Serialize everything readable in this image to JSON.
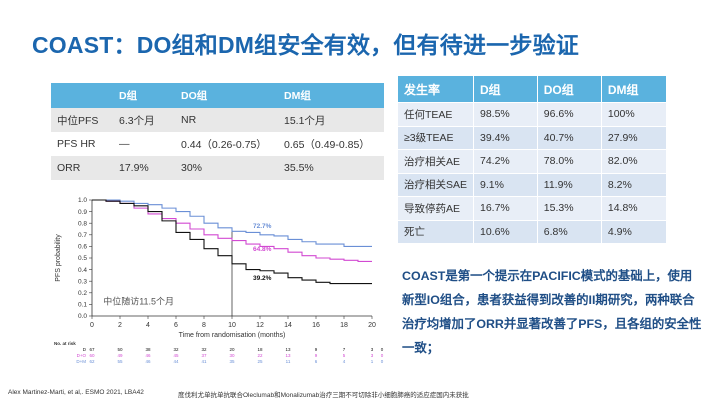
{
  "title": "COAST：DO组和DM组安全有效，但有待进一步验证",
  "efficacy_table": {
    "headers": [
      "",
      "D组",
      "DO组",
      "DM组"
    ],
    "rows": [
      [
        "中位PFS",
        "6.3个月",
        "NR",
        "15.1个月"
      ],
      [
        "PFS HR",
        "—",
        "0.44（0.26-0.75）",
        "0.65（0.49-0.85）"
      ],
      [
        "ORR",
        "17.9%",
        "30%",
        "35.5%"
      ]
    ]
  },
  "safety_table": {
    "headers": [
      "发生率",
      "D组",
      "DO组",
      "DM组"
    ],
    "rows": [
      [
        "任何TEAE",
        "98.5%",
        "96.6%",
        "100%"
      ],
      [
        "≥3级TEAE",
        "39.4%",
        "40.7%",
        "27.9%"
      ],
      [
        "治疗相关AE",
        "74.2%",
        "78.0%",
        "82.0%"
      ],
      [
        "治疗相关SAE",
        "9.1%",
        "11.9%",
        "8.2%"
      ],
      [
        "导致停药AE",
        "16.7%",
        "15.3%",
        "14.8%"
      ],
      [
        "死亡",
        "10.6%",
        "6.8%",
        "4.9%"
      ]
    ]
  },
  "summary": "COAST是第一个提示在PACIFIC模式的基础上，使用新型IO组合，患者获益得到改善的II期研究，两种联合治疗均增加了ORR并显著改善了PFS，且各组的安全性一致；",
  "chart_data": {
    "type": "line",
    "xlabel": "Time from randomisation (months)",
    "ylabel": "PFS probability",
    "xlim": [
      0,
      20
    ],
    "ylim": [
      0,
      1.0
    ],
    "xticks": [
      0,
      2,
      4,
      6,
      8,
      10,
      12,
      14,
      16,
      18,
      20
    ],
    "yticks": [
      "0.0",
      "0.1",
      "0.2",
      "0.3",
      "0.4",
      "0.5",
      "0.6",
      "0.7",
      "0.8",
      "0.9",
      "1.0"
    ],
    "annotation": "中位随访11.5个月",
    "colors": {
      "D": "#111111",
      "DO": "#6a8fd6",
      "DM": "#d24ad2"
    },
    "series": [
      {
        "name": "D",
        "label": "39.2%",
        "points": [
          [
            0,
            1.0
          ],
          [
            1,
            0.99
          ],
          [
            2,
            0.97
          ],
          [
            3,
            0.95
          ],
          [
            4,
            0.9
          ],
          [
            5,
            0.82
          ],
          [
            6,
            0.72
          ],
          [
            7,
            0.66
          ],
          [
            8,
            0.58
          ],
          [
            9,
            0.52
          ],
          [
            10,
            0.45
          ],
          [
            11,
            0.4
          ],
          [
            12,
            0.39
          ],
          [
            13,
            0.37
          ],
          [
            14,
            0.33
          ],
          [
            15,
            0.31
          ],
          [
            16,
            0.29
          ],
          [
            17,
            0.28
          ],
          [
            18,
            0.28
          ],
          [
            19,
            0.28
          ],
          [
            20,
            0.28
          ]
        ]
      },
      {
        "name": "DO",
        "label": "72.7%",
        "points": [
          [
            0,
            1.0
          ],
          [
            1,
            1.0
          ],
          [
            2,
            0.99
          ],
          [
            3,
            0.97
          ],
          [
            4,
            0.96
          ],
          [
            5,
            0.93
          ],
          [
            6,
            0.9
          ],
          [
            7,
            0.86
          ],
          [
            8,
            0.8
          ],
          [
            9,
            0.76
          ],
          [
            10,
            0.73
          ],
          [
            11,
            0.72
          ],
          [
            12,
            0.7
          ],
          [
            13,
            0.69
          ],
          [
            14,
            0.66
          ],
          [
            15,
            0.64
          ],
          [
            16,
            0.62
          ],
          [
            17,
            0.62
          ],
          [
            18,
            0.6
          ],
          [
            19,
            0.6
          ],
          [
            20,
            0.6
          ]
        ]
      },
      {
        "name": "DM",
        "label": "64.8%",
        "points": [
          [
            0,
            1.0
          ],
          [
            1,
            0.99
          ],
          [
            2,
            0.97
          ],
          [
            3,
            0.93
          ],
          [
            4,
            0.88
          ],
          [
            5,
            0.84
          ],
          [
            6,
            0.8
          ],
          [
            7,
            0.75
          ],
          [
            8,
            0.7
          ],
          [
            9,
            0.67
          ],
          [
            10,
            0.65
          ],
          [
            11,
            0.62
          ],
          [
            12,
            0.6
          ],
          [
            13,
            0.58
          ],
          [
            14,
            0.55
          ],
          [
            15,
            0.52
          ],
          [
            16,
            0.5
          ],
          [
            17,
            0.49
          ],
          [
            18,
            0.48
          ],
          [
            19,
            0.47
          ],
          [
            20,
            0.47
          ]
        ]
      }
    ],
    "risk_title": "No. at risk",
    "risk_table": [
      {
        "name": "D",
        "values": [
          "67",
          "50",
          "38",
          "32",
          "32",
          "20",
          "18",
          "13",
          "9",
          "7",
          "3",
          "0"
        ]
      },
      {
        "name": "D+O",
        "values": [
          "60",
          "49",
          "46",
          "45",
          "37",
          "30",
          "22",
          "13",
          "9",
          "5",
          "3",
          "0"
        ]
      },
      {
        "name": "D+M",
        "values": [
          "62",
          "55",
          "46",
          "44",
          "41",
          "35",
          "25",
          "11",
          "6",
          "4",
          "1",
          "0"
        ]
      }
    ]
  },
  "footer": {
    "citation": "Alex Martinez-Marti, et al,. ESMO 2021, LBA42",
    "note": "度伐利尤单抗单抗联合Oleclumab和Monalizumab治疗三期不可切除非小细胞肺癌的适应症国内未获批"
  }
}
